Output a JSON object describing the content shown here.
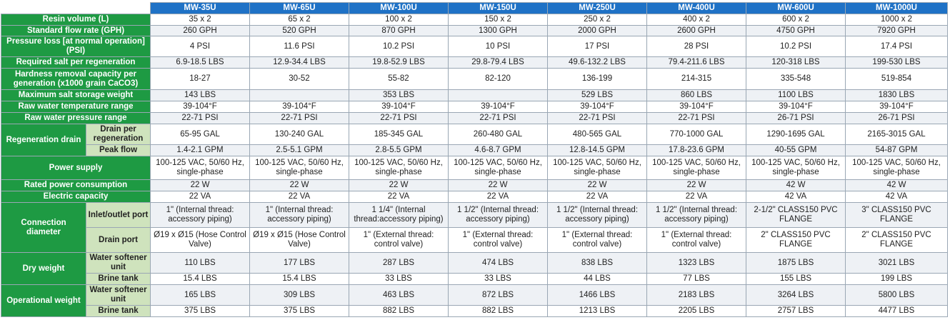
{
  "models": [
    "MW-35U",
    "MW-65U",
    "MW-100U",
    "MW-150U",
    "MW-250U",
    "MW-400U",
    "MW-600U",
    "MW-1000U"
  ],
  "rows": {
    "resin_volume": {
      "label": "Resin volume (L)",
      "values": [
        "35 x 2",
        "65 x 2",
        "100 x 2",
        "150 x 2",
        "250 x 2",
        "400 x 2",
        "600 x 2",
        "1000 x 2"
      ]
    },
    "flow_rate": {
      "label": "Standard flow rate (GPH)",
      "values": [
        "260 GPH",
        "520 GPH",
        "870 GPH",
        "1300 GPH",
        "2000 GPH",
        "2600 GPH",
        "4750 GPH",
        "7920 GPH"
      ]
    },
    "pressure_loss": {
      "label": "Pressure loss [at normal operation] (PSI)",
      "values": [
        "4 PSI",
        "11.6 PSI",
        "10.2 PSI",
        "10 PSI",
        "17 PSI",
        "28 PSI",
        "10.2 PSI",
        "17.4 PSI"
      ]
    },
    "salt_required": {
      "label": "Required salt per regeneration",
      "values": [
        "6.9-18.5 LBS",
        "12.9-34.4 LBS",
        "19.8-52.9 LBS",
        "29.8-79.4 LBS",
        "49.6-132.2 LBS",
        "79.4-211.6 LBS",
        "120-318 LBS",
        "199-530 LBS"
      ]
    },
    "hardness_capacity": {
      "label": "Hardness removal capacity per generation (x1000 grain CaCO3)",
      "values": [
        "18-27",
        "30-52",
        "55-82",
        "82-120",
        "136-199",
        "214-315",
        "335-548",
        "519-854"
      ]
    },
    "salt_storage": {
      "label": "Maximum salt storage weight",
      "values": [
        "143 LBS",
        "",
        "353 LBS",
        "",
        "529 LBS",
        "860 LBS",
        "1100 LBS",
        "1830 LBS"
      ]
    },
    "temp_range": {
      "label": "Raw water temperature range",
      "values": [
        "39-104°F",
        "39-104°F",
        "39-104°F",
        "39-104°F",
        "39-104°F",
        "39-104°F",
        "39-104°F",
        "39-104°F"
      ]
    },
    "pressure_range": {
      "label": "Raw water pressure range",
      "values": [
        "22-71 PSI",
        "22-71 PSI",
        "22-71 PSI",
        "22-71 PSI",
        "22-71 PSI",
        "22-71 PSI",
        "26-71 PSI",
        "26-71 PSI"
      ]
    },
    "drain_per_regen": {
      "group": "Regeneration drain",
      "label": "Drain per regeneration",
      "values": [
        "65-95 GAL",
        "130-240 GAL",
        "185-345 GAL",
        "260-480 GAL",
        "480-565 GAL",
        "770-1000 GAL",
        "1290-1695 GAL",
        "2165-3015 GAL"
      ]
    },
    "peak_flow": {
      "label": "Peak flow",
      "values": [
        "1.4-2.1 GPM",
        "2.5-5.1 GPM",
        "2.8-5.5 GPM",
        "4.6-8.7 GPM",
        "12.8-14.5 GPM",
        "17.8-23.6 GPM",
        "40-55 GPM",
        "54-87 GPM"
      ]
    },
    "power_supply": {
      "label": "Power supply",
      "values": [
        "100-125 VAC, 50/60 Hz, single-phase",
        "100-125 VAC, 50/60 Hz, single-phase",
        "100-125 VAC, 50/60 Hz, single-phase",
        "100-125 VAC, 50/60 Hz, single-phase",
        "100-125 VAC, 50/60 Hz, single-phase",
        "100-125 VAC, 50/60 Hz, single-phase",
        "100-125 VAC, 50/60 Hz, single-phase",
        "100-125 VAC, 50/60 Hz, single-phase"
      ]
    },
    "rated_power": {
      "label": "Rated power consumption",
      "values": [
        "22 W",
        "22 W",
        "22 W",
        "22 W",
        "22 W",
        "22 W",
        "42 W",
        "42 W"
      ]
    },
    "electric_capacity": {
      "label": "Electric capacity",
      "values": [
        "22 VA",
        "22 VA",
        "22 VA",
        "22 VA",
        "22 VA",
        "22 VA",
        "42 VA",
        "42 VA"
      ]
    },
    "inlet_outlet": {
      "group": "Connection diameter",
      "label": "Inlet/outlet port",
      "values": [
        "1\" (Internal thread: accessory piping)",
        "1\" (Internal thread: accessory piping)",
        "1 1/4\" (Internal thread:accessory piping)",
        "1 1/2\" (Internal thread: accessory piping)",
        "1 1/2\" (Internal thread: accessory piping)",
        "1 1/2\" (Internal thread: accessory piping)",
        "2-1/2\" CLASS150 PVC FLANGE",
        "3\" CLASS150 PVC FLANGE"
      ]
    },
    "drain_port": {
      "label": "Drain port",
      "values": [
        "Ø19 x Ø15 (Hose Control Valve)",
        "Ø19 x Ø15 (Hose Control Valve)",
        "1\" (External thread: control valve)",
        "1\" (External thread: control valve)",
        "1\" (External thread: control valve)",
        "1\" (External thread: control valve)",
        "2\" CLASS150 PVC FLANGE",
        "2\" CLASS150 PVC FLANGE"
      ]
    },
    "dry_softener": {
      "group": "Dry weight",
      "label": "Water softener unit",
      "values": [
        "110 LBS",
        "177 LBS",
        "287 LBS",
        "474 LBS",
        "838 LBS",
        "1323 LBS",
        "1875 LBS",
        "3021 LBS"
      ]
    },
    "dry_brine": {
      "label": "Brine tank",
      "values": [
        "15.4 LBS",
        "15.4 LBS",
        "33 LBS",
        "33 LBS",
        "44 LBS",
        "77 LBS",
        "155 LBS",
        "199 LBS"
      ]
    },
    "op_softener": {
      "group": "Operational weight",
      "label": "Water softener unit",
      "values": [
        "165 LBS",
        "309 LBS",
        "463 LBS",
        "872 LBS",
        "1466 LBS",
        "2183 LBS",
        "3264 LBS",
        "5800 LBS"
      ]
    },
    "op_brine": {
      "label": "Brine tank",
      "values": [
        "375 LBS",
        "375 LBS",
        "882 LBS",
        "882 LBS",
        "1213 LBS",
        "2205 LBS",
        "2757 LBS",
        "4477 LBS"
      ]
    }
  }
}
